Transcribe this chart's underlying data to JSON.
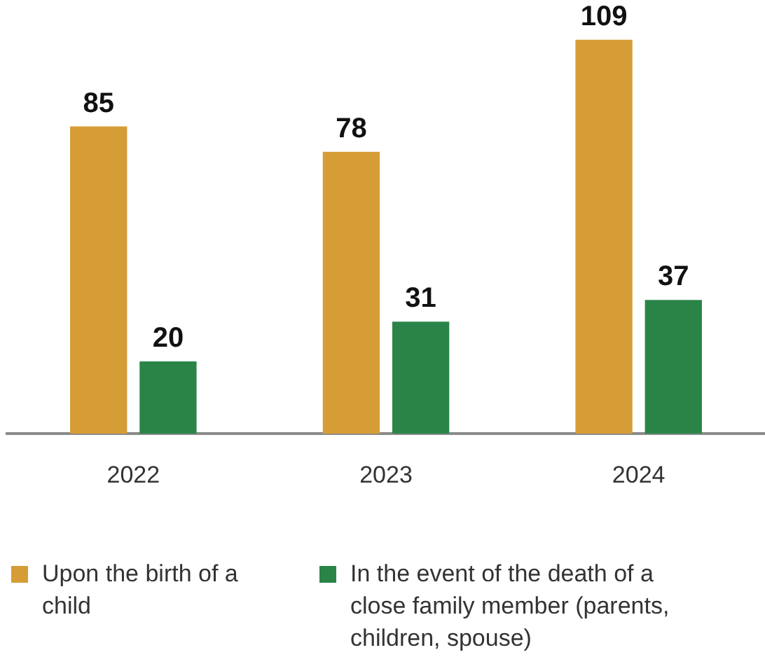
{
  "chart_data": {
    "type": "bar",
    "categories": [
      "2022",
      "2023",
      "2024"
    ],
    "series": [
      {
        "name": "Upon the birth of a child",
        "color": "#d69d36",
        "values": [
          85,
          78,
          109
        ]
      },
      {
        "name": "In the event of the death of a close family member (parents, children, spouse)",
        "color": "#2a8448",
        "values": [
          20,
          31,
          37
        ]
      }
    ],
    "data_labels": true,
    "grid": false,
    "legend": "bottom"
  }
}
